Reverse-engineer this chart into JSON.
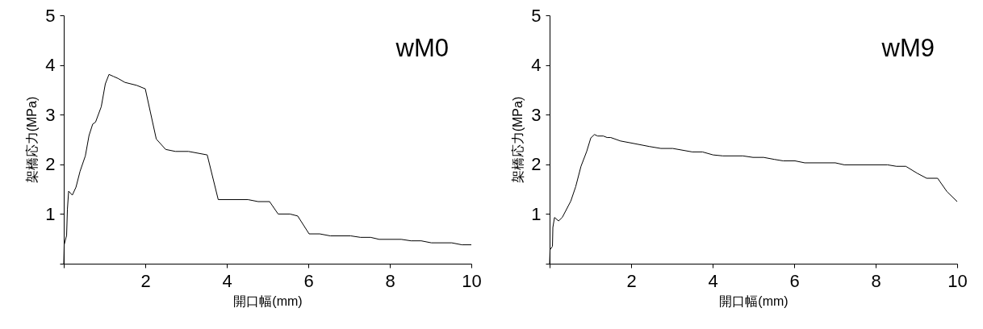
{
  "chart_data": [
    {
      "type": "line",
      "xlabel": "開口幅(mm)",
      "ylabel": "架橋応力(MPa)",
      "annotations": [
        "wM0"
      ],
      "xlim": [
        0,
        10
      ],
      "ylim": [
        0,
        5
      ],
      "xticks": [
        {
          "value": 0,
          "label": null
        },
        2,
        4,
        6,
        8,
        10
      ],
      "yticks": [
        {
          "value": 0,
          "label": null
        },
        1,
        2,
        3,
        4,
        5
      ],
      "series": [
        {
          "color": "#000000",
          "x": [
            0,
            0.01,
            0.07,
            0.09,
            0.12,
            0.21,
            0.3,
            0.4,
            0.53,
            0.62,
            0.71,
            0.78,
            0.92,
            1.02,
            1.11,
            1.22,
            1.33,
            1.5,
            1.79,
            2.0,
            2.27,
            2.5,
            2.74,
            3.06,
            3.52,
            3.79,
            4.52,
            4.77,
            5.05,
            5.26,
            5.55,
            5.74,
            6.02,
            6.28,
            6.54,
            7.04,
            7.28,
            7.53,
            7.74,
            8.28,
            8.52,
            8.77,
            9.02,
            9.52,
            9.77,
            10.0
          ],
          "values": [
            0,
            0.38,
            0.57,
            1.1,
            1.46,
            1.38,
            1.54,
            1.86,
            2.17,
            2.58,
            2.81,
            2.85,
            3.16,
            3.62,
            3.81,
            3.77,
            3.73,
            3.65,
            3.59,
            3.52,
            2.51,
            2.3,
            2.26,
            2.26,
            2.19,
            1.29,
            1.29,
            1.25,
            1.25,
            1.0,
            1.0,
            0.96,
            0.6,
            0.6,
            0.56,
            0.56,
            0.53,
            0.53,
            0.49,
            0.49,
            0.46,
            0.46,
            0.42,
            0.42,
            0.38,
            0.38
          ]
        }
      ]
    },
    {
      "type": "line",
      "xlabel": "開口幅(mm)",
      "ylabel": "架橋応力(MPa)",
      "annotations": [
        "wM9"
      ],
      "xlim": [
        0,
        10
      ],
      "ylim": [
        0,
        5
      ],
      "xticks": [
        {
          "value": 0,
          "label": null
        },
        2,
        4,
        6,
        8,
        10
      ],
      "yticks": [
        {
          "value": 0,
          "label": null
        },
        1,
        2,
        3,
        4,
        5
      ],
      "series": [
        {
          "color": "#000000",
          "x": [
            0,
            0.01,
            0.07,
            0.08,
            0.12,
            0.22,
            0.31,
            0.52,
            0.64,
            0.77,
            0.91,
            1.01,
            1.1,
            1.18,
            1.32,
            1.41,
            1.5,
            1.74,
            2.0,
            2.44,
            2.73,
            3.02,
            3.5,
            3.75,
            4.01,
            4.25,
            4.74,
            4.99,
            5.25,
            5.51,
            5.73,
            6.02,
            6.26,
            7.01,
            7.23,
            8.29,
            8.51,
            8.74,
            9.02,
            9.25,
            9.52,
            9.75,
            10.0
          ],
          "values": [
            0,
            0.28,
            0.35,
            0.73,
            0.93,
            0.86,
            0.93,
            1.26,
            1.55,
            1.96,
            2.26,
            2.53,
            2.6,
            2.57,
            2.57,
            2.54,
            2.54,
            2.47,
            2.43,
            2.36,
            2.32,
            2.32,
            2.25,
            2.25,
            2.19,
            2.17,
            2.17,
            2.14,
            2.14,
            2.1,
            2.07,
            2.07,
            2.03,
            2.03,
            1.99,
            1.99,
            1.96,
            1.96,
            1.82,
            1.72,
            1.72,
            1.45,
            1.25
          ]
        }
      ]
    }
  ]
}
